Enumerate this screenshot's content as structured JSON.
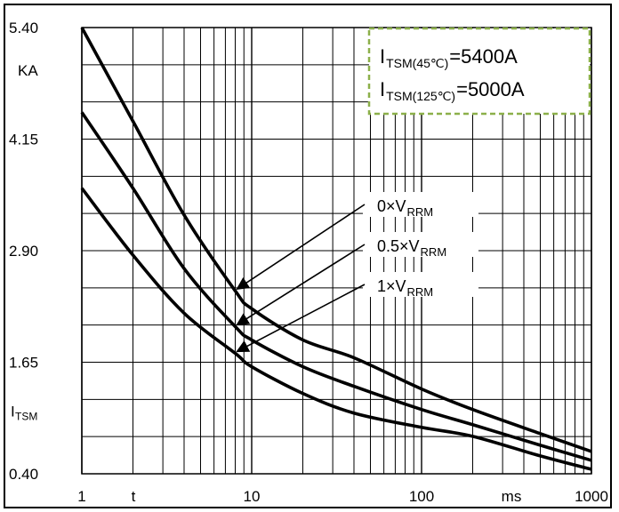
{
  "chart_data": {
    "type": "line",
    "x_scale": "log",
    "xlim": [
      1,
      1000
    ],
    "ylim": [
      0.4,
      5.4
    ],
    "x_ticks": [
      "1",
      "10",
      "100",
      "1000"
    ],
    "y_ticks": [
      "5.40",
      "4.15",
      "2.90",
      "1.65",
      "0.40"
    ],
    "y_unit": "KA",
    "y_label_main": "I",
    "y_label_sub": "TSM",
    "x_label": "t",
    "x_unit": "ms",
    "grid": true,
    "inset": {
      "line1_main": "I",
      "line1_sub": "TSM(45℃)",
      "line1_value": "=5400A",
      "line2_main": "I",
      "line2_sub": "TSM(125℃)",
      "line2_value": "=5000A",
      "border_color": "#8cb04a"
    },
    "series": [
      {
        "name_prefix": "0×V",
        "name_sub": "RRM",
        "points": [
          [
            1,
            5.4
          ],
          [
            2,
            4.35
          ],
          [
            4,
            3.3
          ],
          [
            8,
            2.45
          ],
          [
            10,
            2.25
          ],
          [
            20,
            1.9
          ],
          [
            40,
            1.7
          ],
          [
            100,
            1.35
          ],
          [
            200,
            1.12
          ],
          [
            500,
            0.85
          ],
          [
            1000,
            0.65
          ]
        ]
      },
      {
        "name_prefix": "0.5×V",
        "name_sub": "RRM",
        "points": [
          [
            1,
            4.45
          ],
          [
            2,
            3.6
          ],
          [
            4,
            2.7
          ],
          [
            8,
            2.05
          ],
          [
            10,
            1.9
          ],
          [
            20,
            1.6
          ],
          [
            40,
            1.38
          ],
          [
            100,
            1.12
          ],
          [
            200,
            0.95
          ],
          [
            500,
            0.72
          ],
          [
            1000,
            0.55
          ]
        ]
      },
      {
        "name_prefix": "1×V",
        "name_sub": "RRM",
        "points": [
          [
            1,
            3.6
          ],
          [
            2,
            2.85
          ],
          [
            4,
            2.2
          ],
          [
            8,
            1.75
          ],
          [
            10,
            1.6
          ],
          [
            20,
            1.3
          ],
          [
            40,
            1.08
          ],
          [
            100,
            0.92
          ],
          [
            200,
            0.82
          ],
          [
            500,
            0.6
          ],
          [
            1000,
            0.45
          ]
        ]
      }
    ],
    "arrows": [
      {
        "label_x": 430,
        "label_y": 238,
        "from": [
          410,
          238
        ],
        "to": [
          8,
          2.45
        ]
      },
      {
        "label_x": 430,
        "label_y": 283,
        "from": [
          410,
          283
        ],
        "to": [
          8,
          2.05
        ]
      },
      {
        "label_x": 430,
        "label_y": 328,
        "from": [
          410,
          328
        ],
        "to": [
          8,
          1.75
        ]
      }
    ]
  }
}
